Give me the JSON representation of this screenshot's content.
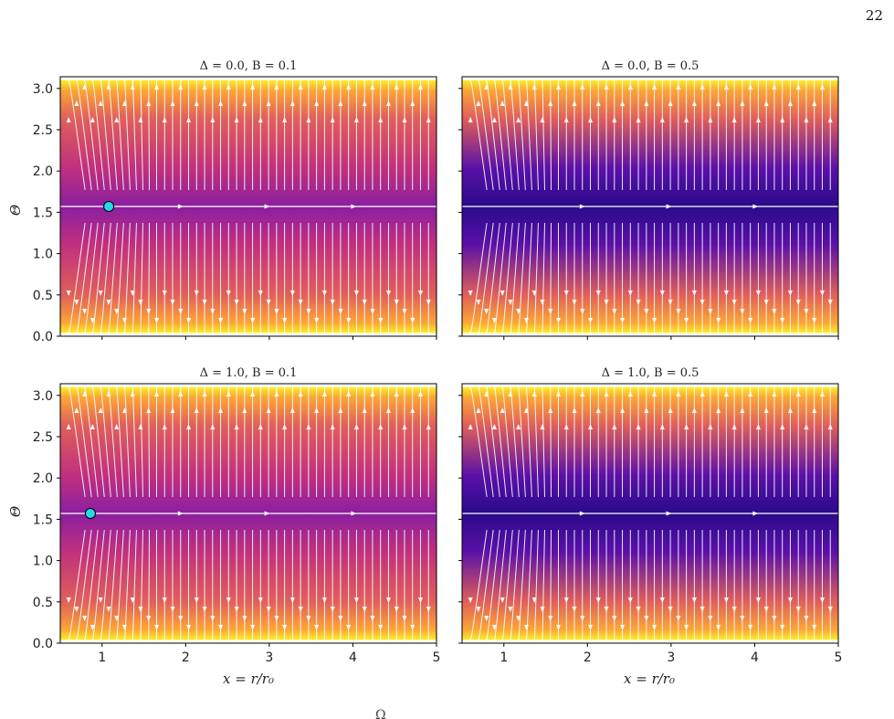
{
  "page_number": "22",
  "figure": {
    "panels": [
      {
        "title": "Δ = 0.0,  B = 0.1",
        "delta": 0.0,
        "B": 0.1,
        "fixed_point_x": 1.08
      },
      {
        "title": "Δ = 0.0,  B = 0.5",
        "delta": 0.0,
        "B": 0.5,
        "fixed_point_x": null
      },
      {
        "title": "Δ = 1.0,  B = 0.1",
        "delta": 1.0,
        "B": 0.1,
        "fixed_point_x": 0.86
      },
      {
        "title": "Δ = 1.0,  B = 0.5",
        "delta": 1.0,
        "B": 0.5,
        "fixed_point_x": null
      }
    ],
    "xlabel": "x = r/r₀",
    "ylabel": "Θ",
    "xlim": [
      0.5,
      5
    ],
    "ylim": [
      0,
      3.14159
    ],
    "x_ticks": [
      "1",
      "2",
      "3",
      "4",
      "5"
    ],
    "y_ticks": [
      "0.0",
      "0.5",
      "1.0",
      "1.5",
      "2.0",
      "2.5",
      "3.0"
    ],
    "colormap": "plasma",
    "stream_color": "#ffffff",
    "fixed_point_color": "#28d8e8"
  },
  "footer_fragment": "Ω"
}
